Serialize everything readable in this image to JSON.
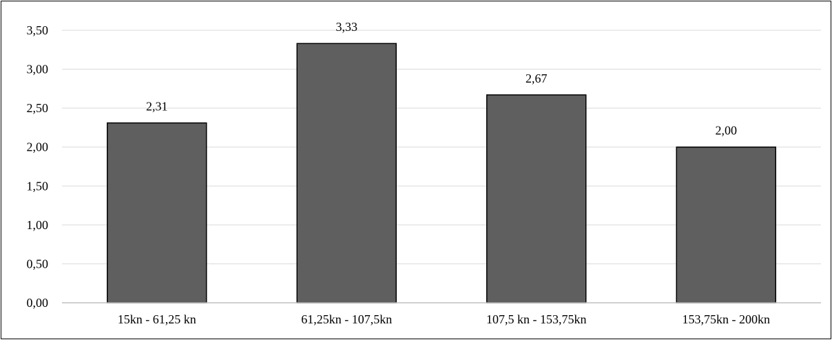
{
  "chart_data": {
    "type": "bar",
    "categories": [
      "15kn - 61,25 kn",
      "61,25kn - 107,5kn",
      "107,5 kn - 153,75kn",
      "153,75kn - 200kn"
    ],
    "values": [
      2.31,
      3.33,
      2.67,
      2.0
    ],
    "value_labels": [
      "2,31",
      "3,33",
      "2,67",
      "2,00"
    ],
    "y_ticks": [
      "0,00",
      "0,50",
      "1,00",
      "1,50",
      "2,00",
      "2,50",
      "3,00",
      "3,50"
    ],
    "ylim": [
      0,
      3.5
    ],
    "y_tick_step": 0.5,
    "grid": true,
    "legend": "none",
    "title": "",
    "xlabel": "",
    "ylabel": "",
    "bar_color": "#5f5f5f",
    "bar_stroke": "#000000",
    "grid_color": "#d9d9d9",
    "axis_color": "#bfbfbf"
  }
}
